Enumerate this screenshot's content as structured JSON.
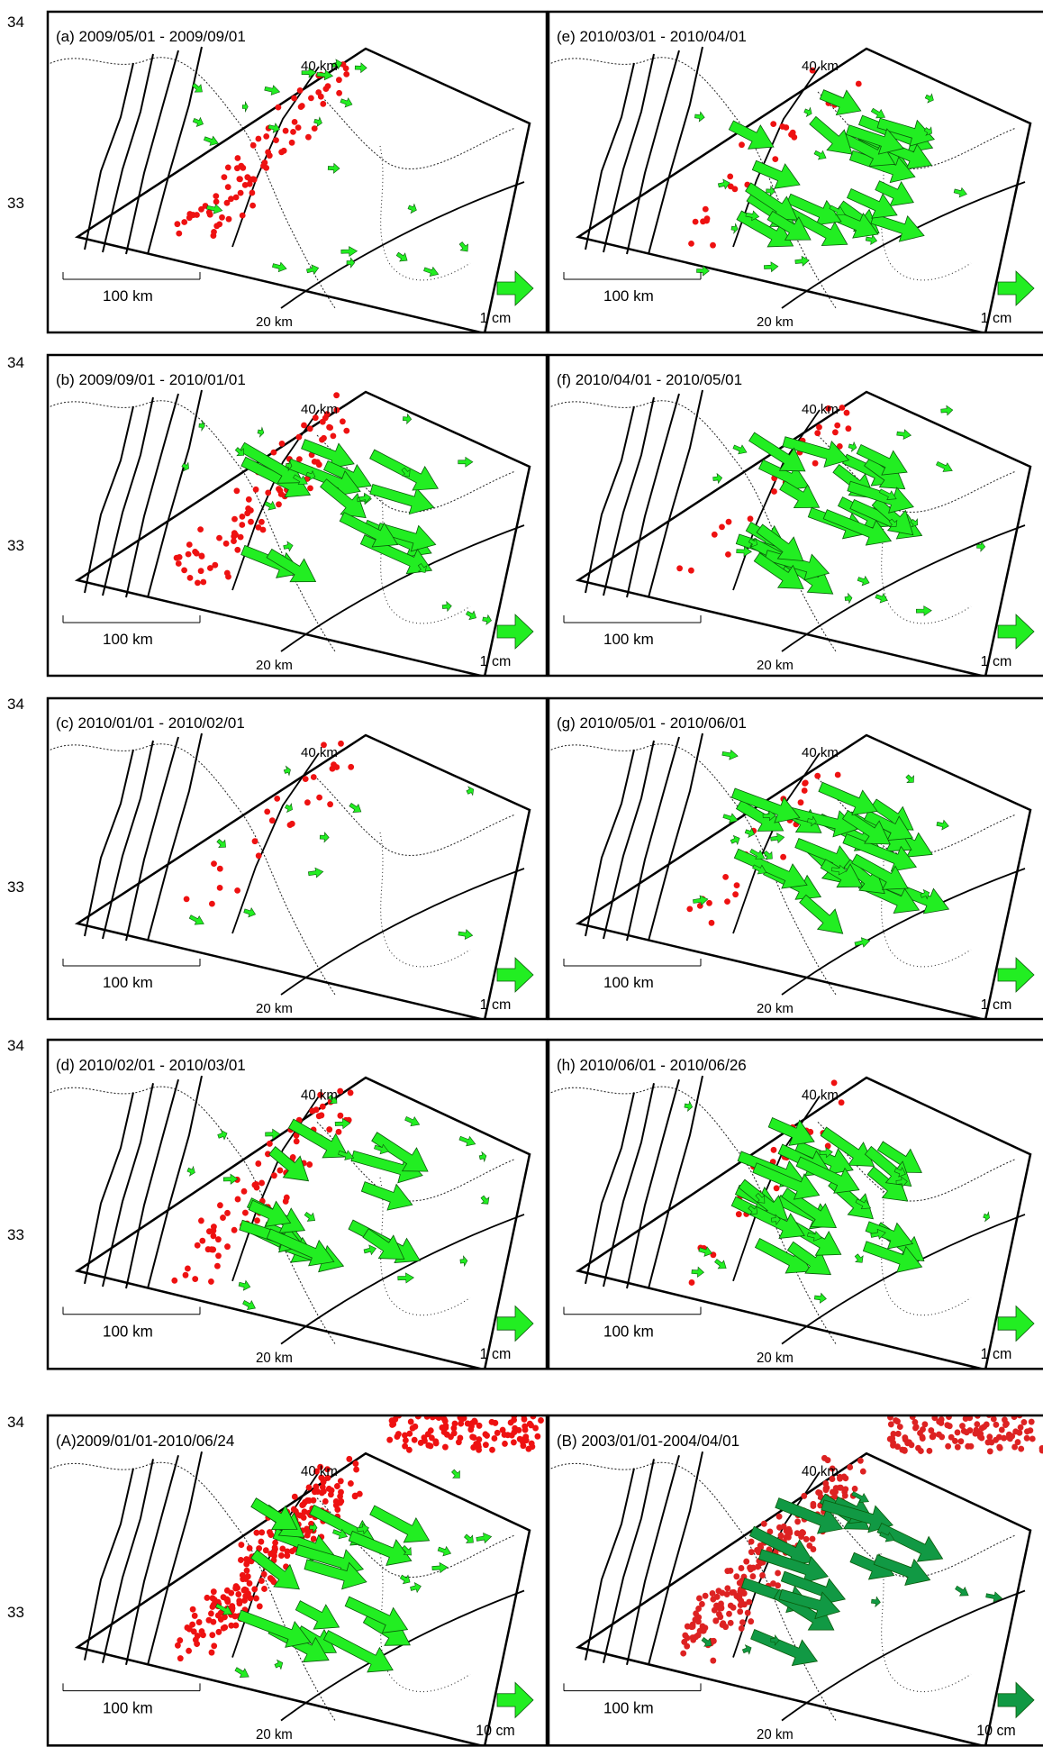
{
  "colors": {
    "frame": "#000000",
    "coastline": "#222222",
    "contour": "#000000",
    "quake": "#ee1111",
    "quake_dense": "#dd2222",
    "vector_light": "#22ee22",
    "vector_dark": "#119944",
    "vector_outline": "#0a5a0a",
    "background": "#ffffff"
  },
  "axis": {
    "lat_34": "34",
    "lat_33": "33"
  },
  "panels": [
    {
      "id": "a",
      "label": "(a) 2009/05/01 - 2009/09/01",
      "depth_40": "40 km",
      "depth_20": "20 km",
      "scale_bar": "100 km",
      "ref_vector": "1 cm",
      "pattern": "weak"
    },
    {
      "id": "e",
      "label": "(e) 2010/03/01 - 2010/04/01",
      "depth_40": "40 km",
      "depth_20": "20 km",
      "scale_bar": "100 km",
      "ref_vector": "1 cm",
      "pattern": "strong"
    },
    {
      "id": "b",
      "label": "(b) 2009/09/01 - 2010/01/01",
      "depth_40": "40 km",
      "depth_20": "20 km",
      "scale_bar": "100 km",
      "ref_vector": "1 cm",
      "pattern": "medium"
    },
    {
      "id": "f",
      "label": "(f) 2010/04/01 - 2010/05/01",
      "depth_40": "40 km",
      "depth_20": "20 km",
      "scale_bar": "100 km",
      "ref_vector": "1 cm",
      "pattern": "strong"
    },
    {
      "id": "c",
      "label": "(c) 2010/01/01 - 2010/02/01",
      "depth_40": "40 km",
      "depth_20": "20 km",
      "scale_bar": "100 km",
      "ref_vector": "1 cm",
      "pattern": "tiny"
    },
    {
      "id": "g",
      "label": "(g) 2010/05/01 - 2010/06/01",
      "depth_40": "40 km",
      "depth_20": "20 km",
      "scale_bar": "100 km",
      "ref_vector": "1 cm",
      "pattern": "strong"
    },
    {
      "id": "d",
      "label": "(d) 2010/02/01 - 2010/03/01",
      "depth_40": "40 km",
      "depth_20": "20 km",
      "scale_bar": "100 km",
      "ref_vector": "1 cm",
      "pattern": "medium"
    },
    {
      "id": "h",
      "label": "(h) 2010/06/01 - 2010/06/26",
      "depth_40": "40 km",
      "depth_20": "20 km",
      "scale_bar": "100 km",
      "ref_vector": "1 cm",
      "pattern": "strong"
    },
    {
      "id": "A",
      "label": "(A)2009/01/01-2010/06/24",
      "depth_40": "40 km",
      "depth_20": "20 km",
      "scale_bar": "100 km",
      "ref_vector": "10 cm",
      "pattern": "cumulative"
    },
    {
      "id": "B",
      "label": "(B) 2003/01/01-2004/04/01",
      "depth_40": "40 km",
      "depth_20": "20 km",
      "scale_bar": "100 km",
      "ref_vector": "10 cm",
      "pattern": "cumulative_dark"
    }
  ]
}
